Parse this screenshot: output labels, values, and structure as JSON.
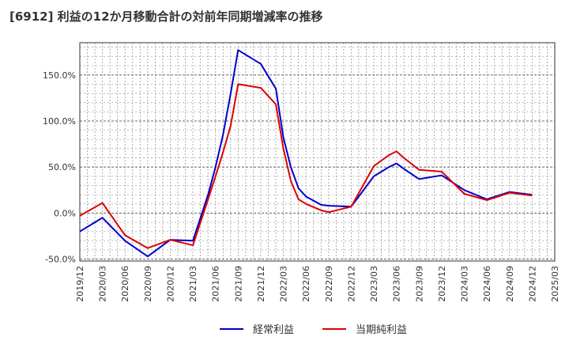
{
  "chart_data": {
    "type": "line",
    "title": "[6912]  利益の12か月移動合計の対前年同期増減率の推移",
    "xlabel": "",
    "ylabel": "",
    "ylim": [
      -52,
      185
    ],
    "yticks": [
      -50,
      0,
      50,
      100,
      150
    ],
    "ytick_labels": [
      "-50.0%",
      "0.0%",
      "50.0%",
      "100.0%",
      "150.0%"
    ],
    "xtick_labels": [
      "2019/12",
      "2020/03",
      "2020/06",
      "2020/09",
      "2020/12",
      "2021/03",
      "2021/06",
      "2021/09",
      "2021/12",
      "2022/03",
      "2022/06",
      "2022/09",
      "2022/12",
      "2023/03",
      "2023/06",
      "2023/09",
      "2023/12",
      "2024/03",
      "2024/06",
      "2024/09",
      "2024/12",
      "2025/03"
    ],
    "grid": true,
    "series": [
      {
        "name": "経常利益",
        "color": "#0000cc",
        "x": [
          0,
          1,
          2,
          3,
          4,
          5,
          5.67,
          6,
          6.33,
          6.67,
          7,
          8,
          8.67,
          9,
          9.33,
          9.67,
          10,
          10.67,
          11,
          12,
          13,
          13.67,
          14,
          14.33,
          15,
          16,
          17,
          18,
          19,
          20
        ],
        "values": [
          -20,
          -5,
          -30,
          -47,
          -29,
          -30,
          20,
          50,
          85,
          130,
          177,
          162,
          135,
          82,
          50,
          27,
          18,
          9,
          8,
          7,
          40,
          50,
          54,
          48,
          37,
          41,
          25,
          15,
          23,
          20
        ]
      },
      {
        "name": "当期純利益",
        "color": "#dd0000",
        "x": [
          0,
          1,
          2,
          3,
          4,
          5,
          5.67,
          6,
          6.33,
          6.67,
          7,
          8,
          8.67,
          9,
          9.33,
          9.67,
          10,
          10.67,
          11,
          12,
          13,
          13.67,
          14,
          14.33,
          15,
          16,
          17,
          18,
          19,
          20
        ],
        "values": [
          -3,
          11,
          -24,
          -38,
          -29,
          -35,
          15,
          40,
          66,
          95,
          140,
          136,
          118,
          70,
          35,
          15,
          10,
          3,
          1,
          7,
          51,
          63,
          67,
          60,
          47,
          45,
          21,
          14,
          22,
          19
        ]
      }
    ]
  }
}
